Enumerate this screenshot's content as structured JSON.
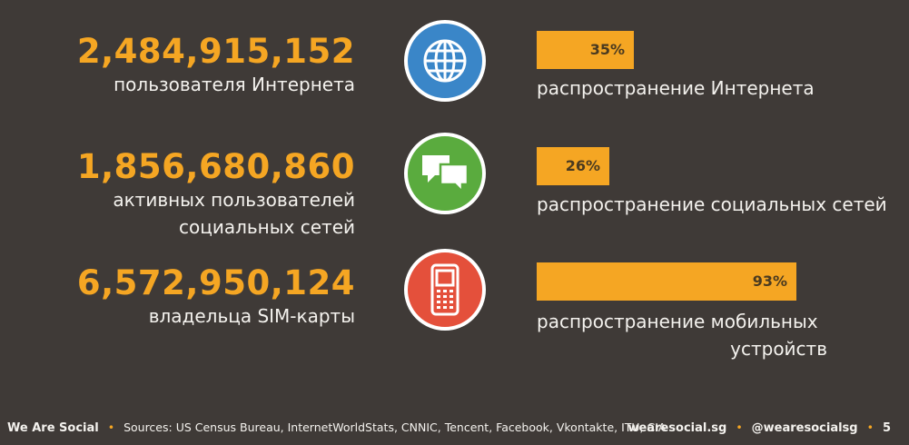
{
  "colors": {
    "accent": "#f5a623",
    "background": "#3f3a37",
    "internet_circle": "#3a86c8",
    "social_circle": "#5aab3e",
    "mobile_circle": "#e4503b"
  },
  "rows": [
    {
      "number": "2,484,915,152",
      "label_lines": [
        "пользователя Интернета"
      ],
      "icon": "globe-icon",
      "percent_text": "35%",
      "penetration": 0.35,
      "bar_label_lines": [
        "распространение Интернета"
      ]
    },
    {
      "number": "1,856,680,860",
      "label_lines": [
        "активных пользователей",
        "социальных сетей"
      ],
      "icon": "chat-bubbles-icon",
      "percent_text": "26%",
      "penetration": 0.26,
      "bar_label_lines": [
        "распространение социальных сетей"
      ]
    },
    {
      "number": "6,572,950,124",
      "label_lines": [
        "владельца SIM-карты"
      ],
      "icon": "mobile-phone-icon",
      "percent_text": "93%",
      "penetration": 0.93,
      "bar_label_lines": [
        "распространение мобильных",
        "устройств"
      ]
    }
  ],
  "chart_data": {
    "type": "bar",
    "categories": [
      "распространение Интернета",
      "распространение социальных сетей",
      "распространение мобильных устройств"
    ],
    "values": [
      35,
      26,
      93
    ],
    "ylim": [
      0,
      100
    ]
  },
  "footer": {
    "brand": "We Are Social",
    "sources": "Sources: US Census Bureau, InternetWorldStats, CNNIC, Tencent, Facebook, Vkontakte, ITU, CIA",
    "site": "wearesocial.sg",
    "handle": "@wearesocialsg",
    "page": "5",
    "separator": "•"
  }
}
